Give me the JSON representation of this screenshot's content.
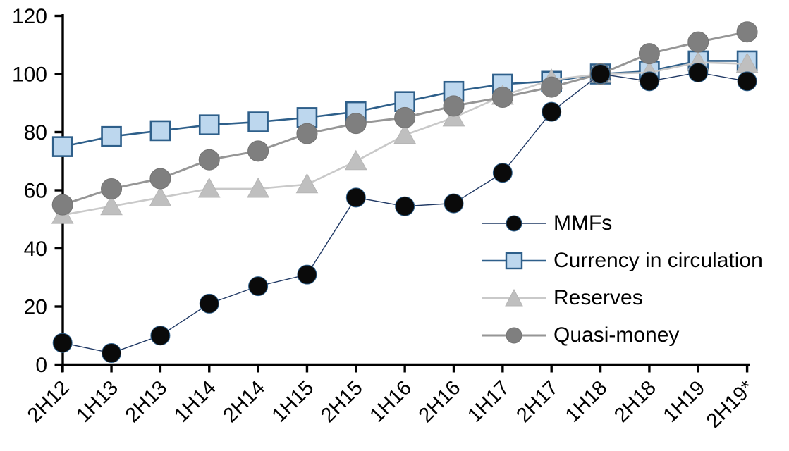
{
  "chart_data": {
    "type": "line",
    "title": "",
    "xlabel": "",
    "ylabel": "",
    "ylim": [
      0,
      120
    ],
    "y_ticks": [
      0,
      20,
      40,
      60,
      80,
      100,
      120
    ],
    "grid": false,
    "legend_position": "inside-right",
    "x_labels": [
      "2H12",
      "1H13",
      "2H13",
      "1H14",
      "2H14",
      "1H15",
      "2H15",
      "1H16",
      "2H16",
      "1H17",
      "2H17",
      "1H18",
      "2H18",
      "1H19",
      "2H19*"
    ],
    "series": [
      {
        "name": "MMFs",
        "marker": "circle",
        "marker_fill": "#0a0a0a",
        "marker_stroke": "#2e5f8a",
        "marker_stroke_width": 1,
        "marker_size": 13.5,
        "line_color": "#1f3864",
        "line_width": 1.4,
        "values": [
          7.5,
          4,
          10,
          21,
          27,
          31,
          57.5,
          54.5,
          55.5,
          66,
          87,
          100,
          97.5,
          100.5,
          97.5
        ]
      },
      {
        "name": "Currency in circulation",
        "marker": "square",
        "marker_fill": "#bdd7ee",
        "marker_stroke": "#2e5f8a",
        "marker_stroke_width": 2.6,
        "marker_size": 13.5,
        "line_color": "#2e5f8a",
        "line_width": 2.6,
        "values": [
          75,
          78.5,
          80.5,
          82.5,
          83.5,
          85,
          87,
          90.5,
          94,
          96.5,
          97.5,
          100,
          101,
          104.5,
          104.5
        ]
      },
      {
        "name": "Reserves",
        "marker": "triangle",
        "marker_fill": "#bfbfbf",
        "marker_stroke": "#b5b5b5",
        "marker_stroke_width": 1,
        "marker_size": 15,
        "line_color": "#c9c9c9",
        "line_width": 2.6,
        "values": [
          51.5,
          54.5,
          57.5,
          60.5,
          60.5,
          62,
          70,
          79,
          85,
          92.5,
          98,
          100,
          100.5,
          104,
          103.5
        ]
      },
      {
        "name": "Quasi-money",
        "marker": "circle",
        "marker_fill": "#7f7f7f",
        "marker_stroke": "#737373",
        "marker_stroke_width": 1,
        "marker_size": 14.5,
        "line_color": "#969696",
        "line_width": 3,
        "values": [
          55,
          60.5,
          64,
          70.5,
          73.5,
          79.5,
          83,
          85,
          89,
          92,
          95.5,
          100,
          107,
          111,
          114.5
        ]
      }
    ],
    "axis_color": "#000000"
  }
}
